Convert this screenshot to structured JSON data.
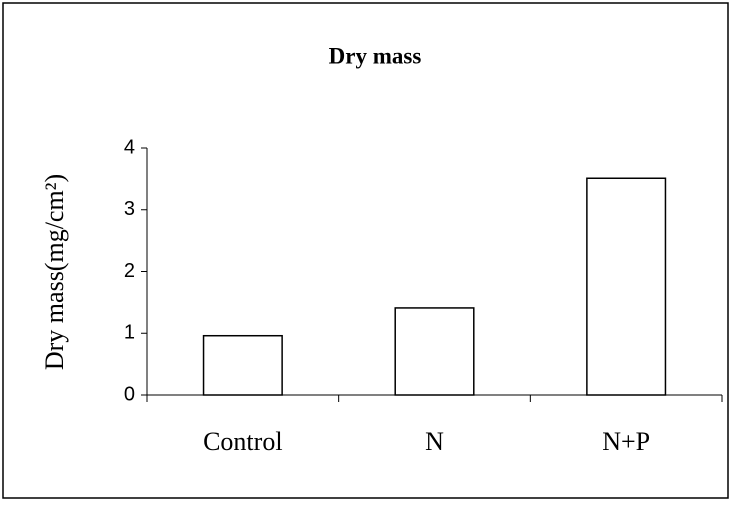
{
  "chart_data": {
    "type": "bar",
    "title": "Dry mass",
    "ylabel": "Dry mass(mg/cm²)",
    "categories": [
      "Control",
      "N",
      "N+P"
    ],
    "values": [
      0.96,
      1.41,
      3.51
    ],
    "color": "#ffffff",
    "edge_color": "#000000",
    "ylim": [
      0,
      4
    ],
    "yticks": [
      0,
      1,
      2,
      3,
      4
    ],
    "grid": false
  }
}
